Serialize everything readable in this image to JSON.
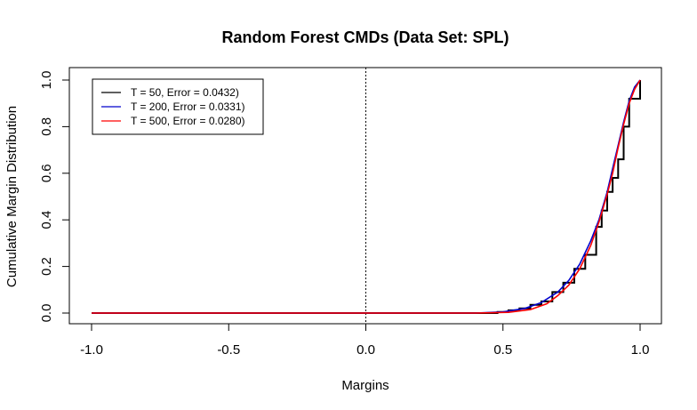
{
  "chart_data": {
    "type": "line",
    "title": "Random Forest CMDs (Data Set: SPL)",
    "xlabel": "Margins",
    "ylabel": "Cumulative Margin Distribution",
    "xlim": [
      -1.0,
      1.0
    ],
    "ylim": [
      0.0,
      1.0
    ],
    "x_ticks": [
      -1.0,
      -0.5,
      0.0,
      0.5,
      1.0
    ],
    "x_tick_labels": [
      "-1.0",
      "-0.5",
      "0.0",
      "0.5",
      "1.0"
    ],
    "y_ticks": [
      0.0,
      0.2,
      0.4,
      0.6,
      0.8,
      1.0
    ],
    "y_tick_labels": [
      "0.0",
      "0.2",
      "0.4",
      "0.6",
      "0.8",
      "1.0"
    ],
    "grid": false,
    "legend_position": "top-left",
    "reference_line": {
      "x": 0.0,
      "style": "dotted",
      "color": "#000000"
    },
    "series": [
      {
        "name": "T = 50, Error = 0.0432)",
        "color": "#000000",
        "step": true,
        "points": [
          [
            -1.0,
            0.0
          ],
          [
            0.4,
            0.0
          ],
          [
            0.48,
            0.005
          ],
          [
            0.52,
            0.012
          ],
          [
            0.56,
            0.02
          ],
          [
            0.6,
            0.035
          ],
          [
            0.64,
            0.05
          ],
          [
            0.68,
            0.09
          ],
          [
            0.72,
            0.13
          ],
          [
            0.76,
            0.19
          ],
          [
            0.8,
            0.25
          ],
          [
            0.84,
            0.37
          ],
          [
            0.86,
            0.44
          ],
          [
            0.88,
            0.52
          ],
          [
            0.9,
            0.58
          ],
          [
            0.92,
            0.66
          ],
          [
            0.94,
            0.8
          ],
          [
            0.96,
            0.92
          ],
          [
            1.0,
            1.0
          ]
        ]
      },
      {
        "name": "T = 200, Error = 0.0331)",
        "color": "#0000cc",
        "step": false,
        "points": [
          [
            -1.0,
            0.0
          ],
          [
            0.4,
            0.0
          ],
          [
            0.5,
            0.005
          ],
          [
            0.58,
            0.02
          ],
          [
            0.64,
            0.045
          ],
          [
            0.7,
            0.09
          ],
          [
            0.74,
            0.14
          ],
          [
            0.78,
            0.21
          ],
          [
            0.82,
            0.31
          ],
          [
            0.85,
            0.4
          ],
          [
            0.88,
            0.52
          ],
          [
            0.9,
            0.62
          ],
          [
            0.92,
            0.72
          ],
          [
            0.94,
            0.82
          ],
          [
            0.96,
            0.91
          ],
          [
            0.98,
            0.97
          ],
          [
            1.0,
            1.0
          ]
        ]
      },
      {
        "name": "T = 500, Error = 0.0280)",
        "color": "#ff0000",
        "step": false,
        "points": [
          [
            -1.0,
            0.0
          ],
          [
            0.4,
            0.0
          ],
          [
            0.52,
            0.003
          ],
          [
            0.6,
            0.015
          ],
          [
            0.66,
            0.04
          ],
          [
            0.7,
            0.075
          ],
          [
            0.74,
            0.12
          ],
          [
            0.78,
            0.19
          ],
          [
            0.82,
            0.29
          ],
          [
            0.85,
            0.39
          ],
          [
            0.88,
            0.51
          ],
          [
            0.9,
            0.6
          ],
          [
            0.92,
            0.71
          ],
          [
            0.94,
            0.81
          ],
          [
            0.96,
            0.9
          ],
          [
            0.98,
            0.96
          ],
          [
            1.0,
            1.0
          ]
        ]
      }
    ]
  }
}
